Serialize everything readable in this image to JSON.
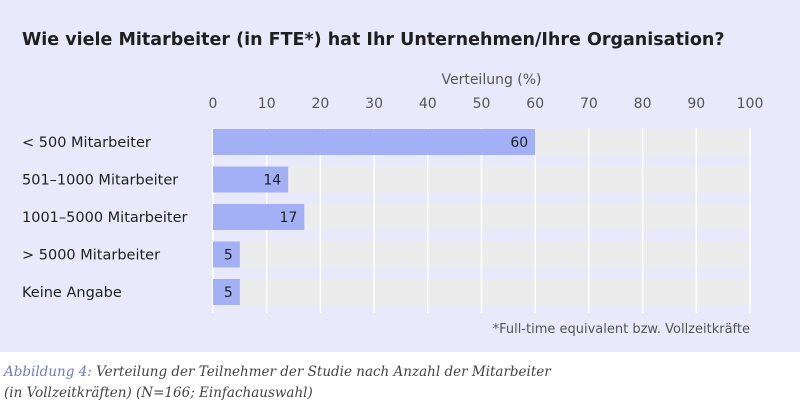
{
  "chart_data": {
    "type": "bar",
    "orientation": "horizontal",
    "title": "Wie viele Mitarbeiter (in FTE*) hat Ihr Unternehmen/Ihre Organisation?",
    "xlabel": "Verteilung (%)",
    "ylabel": "",
    "xlim": [
      0,
      100
    ],
    "xticks": [
      0,
      10,
      20,
      30,
      40,
      50,
      60,
      70,
      80,
      90,
      100
    ],
    "categories": [
      "< 500 Mitarbeiter",
      "501–1000 Mitarbeiter",
      "1001–5000 Mitarbeiter",
      "> 5000 Mitarbeiter",
      "Keine Angabe"
    ],
    "values": [
      60,
      14,
      17,
      5,
      5
    ],
    "bar_color": "#a3b0f5",
    "track_color": "#ececec",
    "grid": true,
    "footnote": "*Full-time equivalent bzw. Vollzeitkräfte"
  },
  "caption": {
    "prefix": "Abbildung 4:",
    "text": " Verteilung der Teilnehmer der Studie nach Anzahl der Mitarbeiter",
    "line2": "(in Vollzeitkräften) (N=166; Einfachauswahl)"
  },
  "colors": {
    "panel_background": "#e8eafb",
    "caption_prefix": "#6a7ec8"
  }
}
